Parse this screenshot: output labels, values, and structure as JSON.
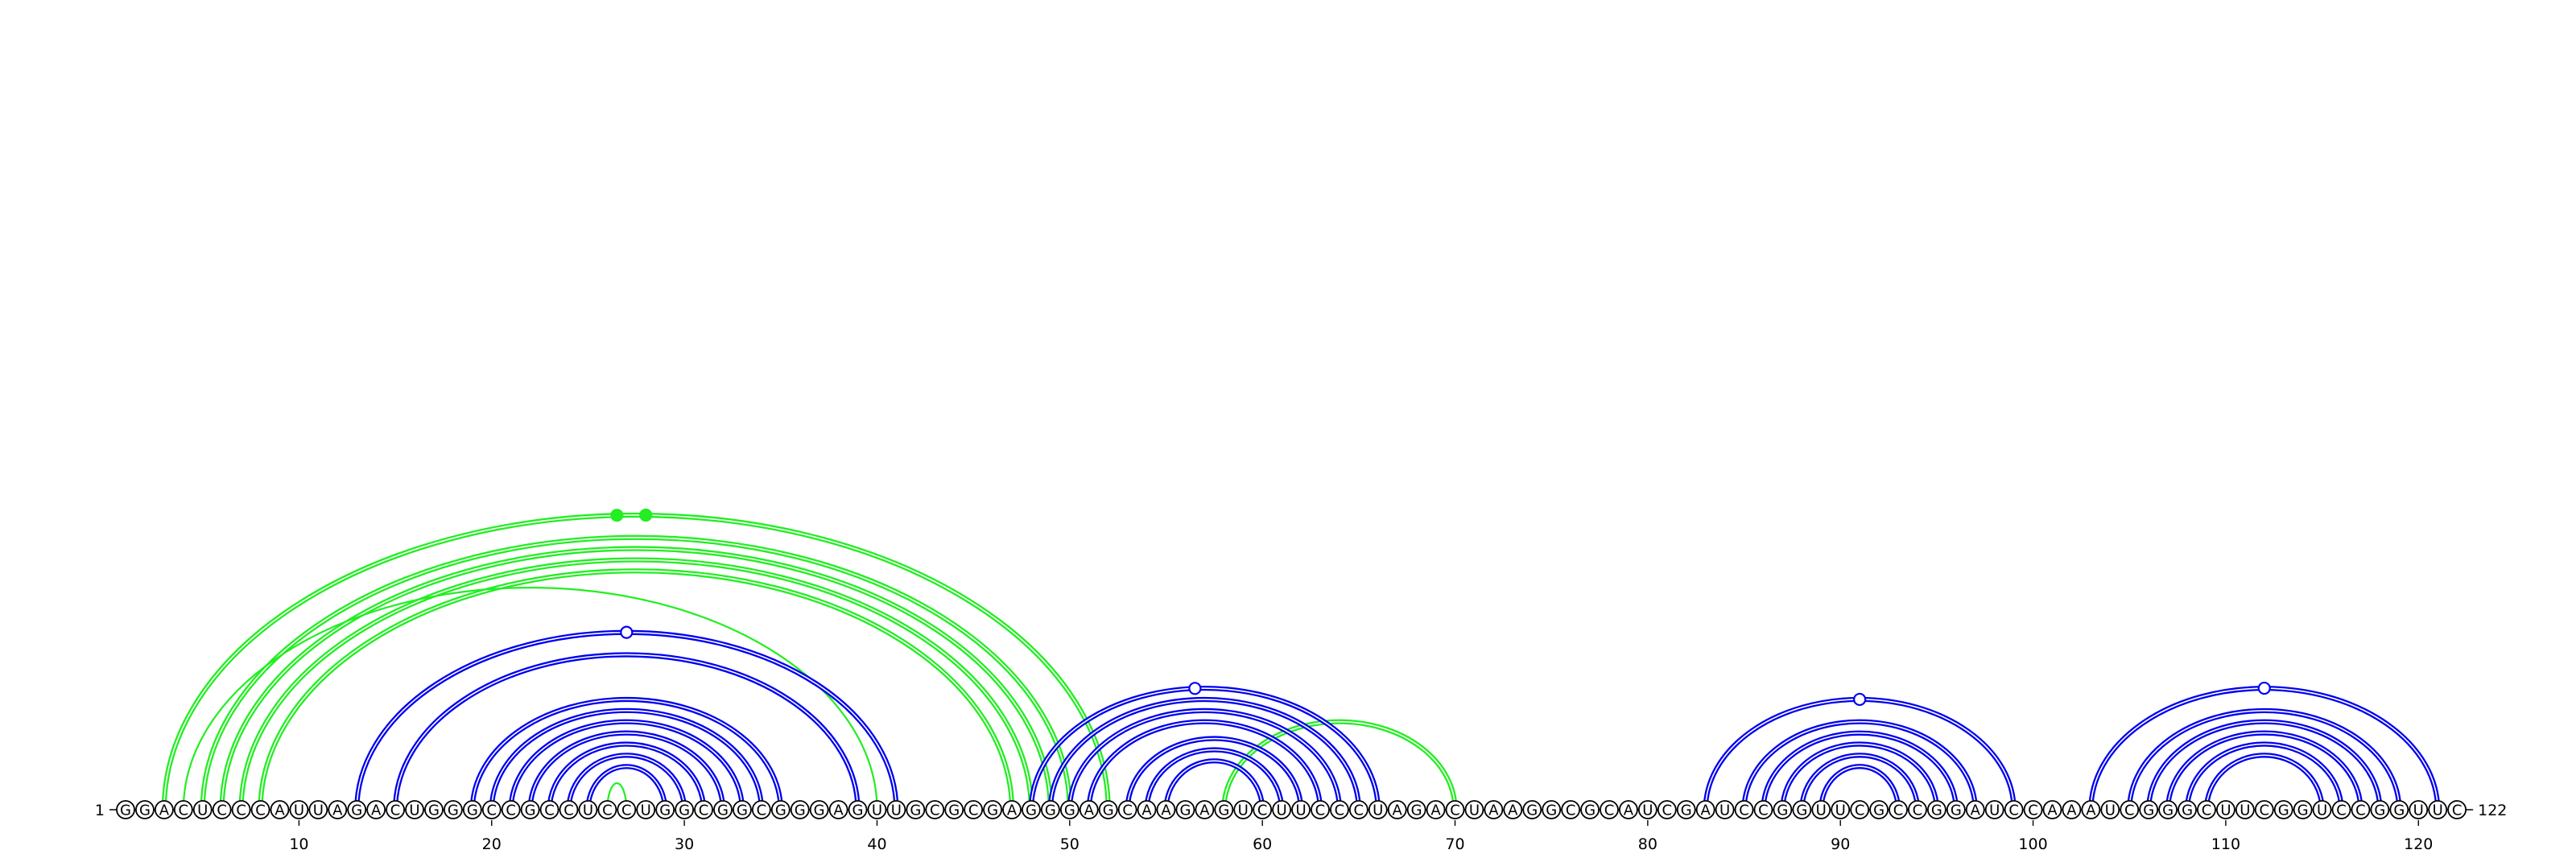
{
  "sequence": "GGACUCCCAUUAGACUGGGCCGCCUCCUGGCGGCGGGAGUUGCGCGAGGGAGCAAGAGUCUUCCCUAGACUAAGGCGCAUCGAUCCGGUUCGCCGGAUCCAAAUCGGGCUUCGGUCCGGUUC",
  "start_label": "1",
  "end_label": "122",
  "tick_labels": [
    "10",
    "20",
    "30",
    "40",
    "50",
    "60",
    "70",
    "80",
    "90",
    "100",
    "110",
    "120"
  ],
  "colors": {
    "stem": "#0000ee",
    "pseudoknot": "#22ee22",
    "backbone": "#000000"
  },
  "helices": [
    {
      "class": "pseudoknot",
      "pairs": [
        [
          3,
          52
        ],
        [
          5,
          50
        ],
        [
          6,
          49
        ],
        [
          7,
          48
        ],
        [
          8,
          47
        ]
      ],
      "double": true
    },
    {
      "class": "pseudoknot",
      "pairs": [
        [
          4,
          40
        ]
      ],
      "double": false
    },
    {
      "class": "pseudoknot",
      "pairs": [
        [
          26,
          27
        ]
      ],
      "double": false
    },
    {
      "class": "pseudoknot",
      "pairs": [
        [
          58,
          70
        ]
      ],
      "double": true
    },
    {
      "class": "stem",
      "pairs": [
        [
          13,
          41
        ],
        [
          15,
          39
        ]
      ],
      "double": true
    },
    {
      "class": "stem",
      "pairs": [
        [
          19,
          35
        ],
        [
          20,
          34
        ],
        [
          21,
          33
        ],
        [
          22,
          32
        ],
        [
          23,
          31
        ],
        [
          24,
          30
        ],
        [
          25,
          29
        ]
      ],
      "double": true
    },
    {
      "class": "stem",
      "pairs": [
        [
          48,
          66
        ],
        [
          49,
          65
        ],
        [
          50,
          64
        ],
        [
          51,
          63
        ],
        [
          53,
          62
        ],
        [
          54,
          61
        ],
        [
          55,
          60
        ]
      ],
      "double": true
    },
    {
      "class": "stem",
      "pairs": [
        [
          83,
          99
        ],
        [
          85,
          97
        ],
        [
          86,
          96
        ],
        [
          87,
          95
        ],
        [
          88,
          94
        ],
        [
          89,
          93
        ]
      ],
      "double": true
    },
    {
      "class": "stem",
      "pairs": [
        [
          103,
          121
        ],
        [
          105,
          119
        ],
        [
          106,
          118
        ],
        [
          107,
          117
        ],
        [
          108,
          116
        ],
        [
          109,
          115
        ]
      ],
      "double": true
    }
  ],
  "markers": [
    {
      "position": 28,
      "class": "pseudoknot",
      "filled": true
    },
    {
      "position": 26.5,
      "class": "pseudoknot",
      "filled": true
    },
    {
      "position": 27,
      "class": "stem",
      "filled": false
    },
    {
      "position": 56.5,
      "class": "stem",
      "filled": false
    },
    {
      "position": 91,
      "class": "stem",
      "filled": false
    },
    {
      "position": 112,
      "class": "stem",
      "filled": false
    }
  ]
}
